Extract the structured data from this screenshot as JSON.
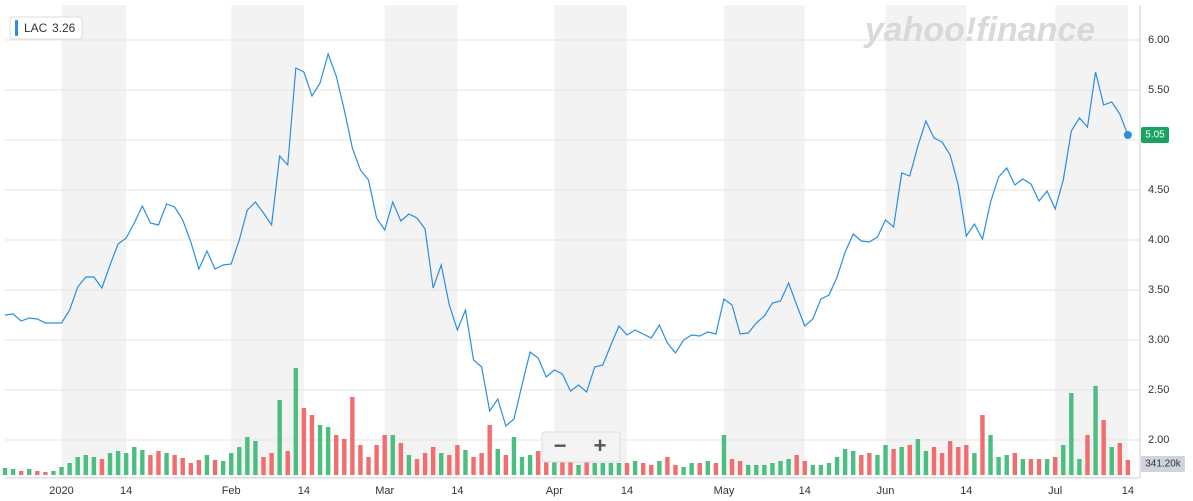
{
  "chart_data": {
    "type": "line",
    "watermark": "yahoo!finance",
    "controls": [
      "−",
      "+"
    ],
    "xlim": [
      0,
      140.5
    ],
    "xticks": [
      {
        "value": 7,
        "label": "2020"
      },
      {
        "value": 15,
        "label": "14"
      },
      {
        "value": 28,
        "label": "Feb"
      },
      {
        "value": 37,
        "label": "14"
      },
      {
        "value": 47,
        "label": "Mar"
      },
      {
        "value": 56,
        "label": "14"
      },
      {
        "value": 68,
        "label": "Apr"
      },
      {
        "value": 77,
        "label": "14"
      },
      {
        "value": 89,
        "label": "May"
      },
      {
        "value": 99,
        "label": "14"
      },
      {
        "value": 109,
        "label": "Jun"
      },
      {
        "value": 119,
        "label": "14"
      },
      {
        "value": 130,
        "label": "Jul"
      },
      {
        "value": 139,
        "label": "14"
      }
    ],
    "ylim": [
      1.65,
      6.35
    ],
    "yticks": [
      {
        "value": 2,
        "label": "2.00"
      },
      {
        "value": 2.5,
        "label": "2.50"
      },
      {
        "value": 3,
        "label": "3.00"
      },
      {
        "value": 3.5,
        "label": "3.50"
      },
      {
        "value": 4,
        "label": "4.00"
      },
      {
        "value": 4.5,
        "label": "4.50"
      },
      {
        "value": 5,
        "label": "5.00"
      },
      {
        "value": 5.5,
        "label": "5.50"
      },
      {
        "value": 6,
        "label": "6.00"
      }
    ],
    "y2lim": [
      0,
      10692500
    ],
    "grid": true,
    "band_color": "#f3f3f3",
    "series": [
      {
        "name": "LAC",
        "color": "#2a8ee6",
        "values": [
          3.25,
          3.26,
          3.19,
          3.22,
          3.21,
          3.17,
          3.17,
          3.17,
          3.3,
          3.53,
          3.63,
          3.63,
          3.52,
          3.75,
          3.96,
          4.02,
          4.17,
          4.34,
          4.17,
          4.15,
          4.36,
          4.33,
          4.2,
          3.98,
          3.71,
          3.89,
          3.71,
          3.75,
          3.76,
          4.0,
          4.3,
          4.38,
          4.27,
          4.15,
          4.84,
          4.75,
          5.72,
          5.68,
          5.44,
          5.57,
          5.86,
          5.64,
          5.3,
          4.92,
          4.7,
          4.6,
          4.22,
          4.1,
          4.38,
          4.19,
          4.26,
          4.22,
          4.11,
          3.52,
          3.75,
          3.35,
          3.1,
          3.3,
          2.8,
          2.73,
          2.29,
          2.41,
          2.14,
          2.21,
          2.55,
          2.88,
          2.82,
          2.63,
          2.7,
          2.66,
          2.49,
          2.55,
          2.48,
          2.73,
          2.75,
          2.95,
          3.14,
          3.05,
          3.1,
          3.06,
          3.02,
          3.15,
          2.97,
          2.87,
          3.0,
          3.05,
          3.04,
          3.08,
          3.06,
          3.41,
          3.35,
          3.06,
          3.07,
          3.17,
          3.24,
          3.37,
          3.39,
          3.57,
          3.35,
          3.14,
          3.21,
          3.41,
          3.45,
          3.63,
          3.88,
          4.06,
          3.99,
          3.98,
          4.03,
          4.2,
          4.13,
          4.67,
          4.64,
          4.94,
          5.19,
          5.02,
          4.98,
          4.85,
          4.55,
          4.04,
          4.16,
          4.01,
          4.38,
          4.63,
          4.72,
          4.55,
          4.61,
          4.56,
          4.39,
          4.49,
          4.31,
          4.6,
          5.09,
          5.22,
          5.13,
          5.68,
          5.35,
          5.38,
          5.26,
          5.05
        ]
      },
      {
        "type": "bar",
        "axis": "y2",
        "up_color": "#4cbf80",
        "down_color": "#f26d6d",
        "values": [
          159250,
          136500,
          91000,
          136500,
          91000,
          68250,
          91000,
          182000,
          273000,
          409500,
          455000,
          409500,
          364000,
          500500,
          546000,
          500500,
          637000,
          568750,
          455000,
          546000,
          500500,
          455000,
          386750,
          273000,
          341250,
          455000,
          341250,
          318500,
          500500,
          637000,
          864500,
          773500,
          409500,
          500500,
          1706250,
          546000,
          2434250,
          1524250,
          1365000,
          1137500,
          1092000,
          910000,
          819000,
          1774500,
          682500,
          409500,
          682500,
          910000,
          910000,
          728000,
          455000,
          364000,
          500500,
          637000,
          500500,
          455000,
          682500,
          568750,
          409500,
          500500,
          1137500,
          591500,
          455000,
          864500,
          409500,
          455000,
          546000,
          864500,
          455000,
          455000,
          318500,
          227500,
          318500,
          273000,
          273000,
          273000,
          273000,
          273000,
          318500,
          273000,
          227500,
          318500,
          409500,
          227500,
          182000,
          273000,
          273000,
          318500,
          273000,
          910000,
          364000,
          318500,
          227500,
          227500,
          227500,
          273000,
          318500,
          364000,
          455000,
          318500,
          227500,
          227500,
          273000,
          409500,
          591500,
          546000,
          455000,
          500500,
          455000,
          682500,
          591500,
          637000,
          682500,
          819000,
          546000,
          637000,
          500500,
          773500,
          637000,
          682500,
          500500,
          1365000,
          910000,
          409500,
          455000,
          500500,
          364000,
          364000,
          364000,
          364000,
          409500,
          682500,
          1865500,
          364000,
          910000,
          2024750,
          1251250,
          637000,
          728000,
          341200
        ],
        "value_labels": {
          "139": "341.20k"
        }
      }
    ]
  }
}
